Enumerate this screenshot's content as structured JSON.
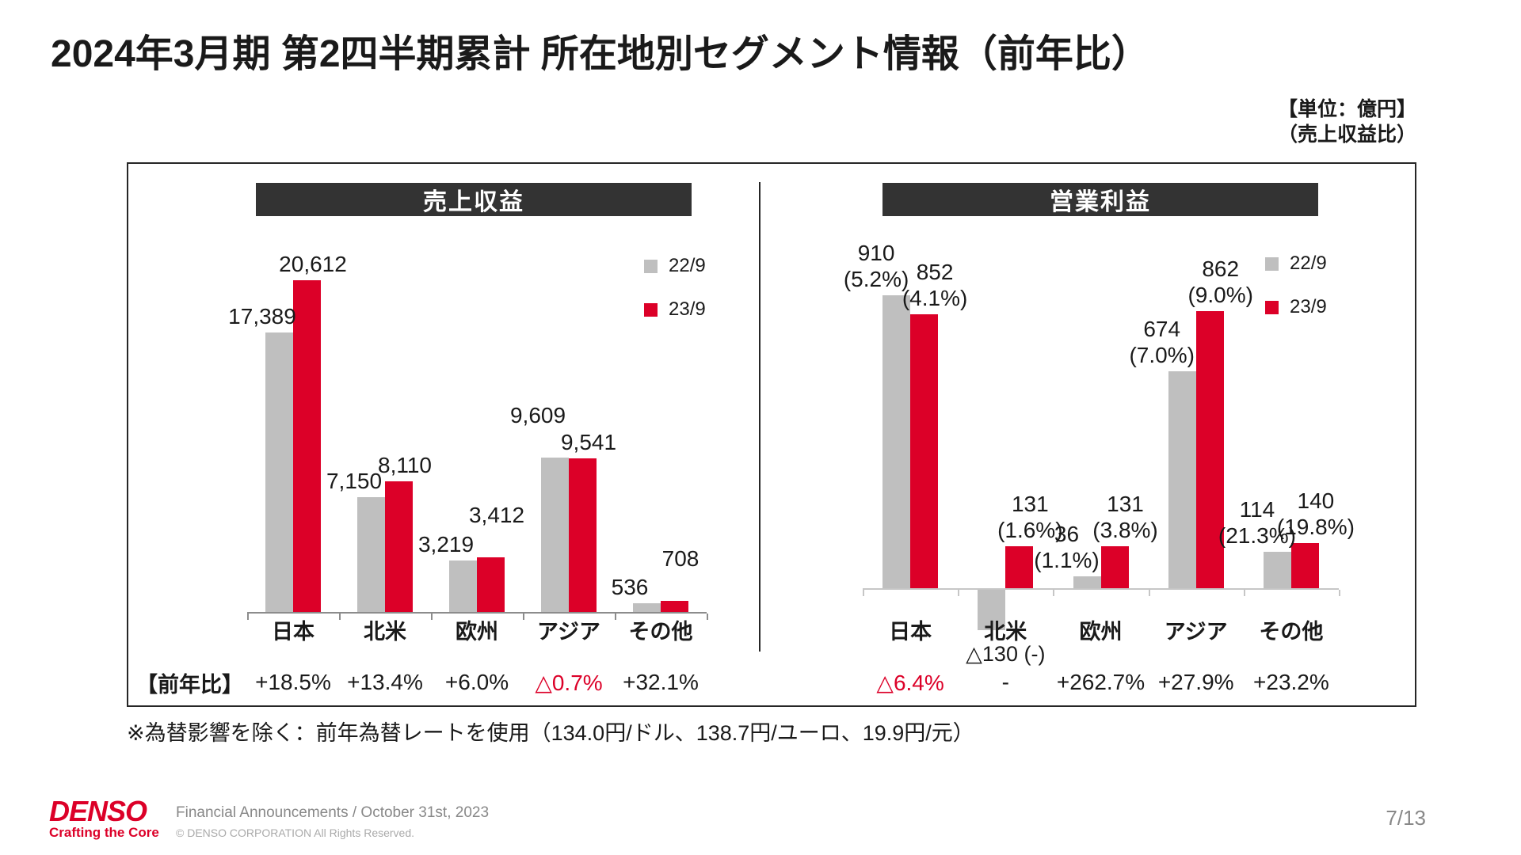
{
  "slide": {
    "title": "2024年3月期 第2四半期累計 所在地別セグメント情報（前年比）",
    "unit_lines": [
      "【単位：億円】",
      "（売上収益比）"
    ],
    "yoy_row_label": "【前年比】",
    "footnote": "※為替影響を除く：前年為替レートを使用（134.0円/ドル、138.7円/ユーロ、19.9円/元）",
    "page_number": "7/13"
  },
  "footer": {
    "logo": "DENSO",
    "tagline": "Crafting the Core",
    "event": "Financial Announcements / October 31st, 2023",
    "copyright": "© DENSO CORPORATION All Rights Reserved."
  },
  "legend": {
    "items": [
      {
        "label": "22/9",
        "color": "#BFBFBF"
      },
      {
        "label": "23/9",
        "color": "#DC0028"
      }
    ]
  },
  "colors": {
    "series_prev": "#BFBFBF",
    "series_curr": "#DC0028",
    "accent_red": "#DC0028",
    "header_bg": "#333333",
    "axis_left": "#8c8c8c",
    "axis_right": "#c6c6c6"
  },
  "chart_data": [
    {
      "type": "bar",
      "title": "売上収益",
      "categories": [
        "日本",
        "北米",
        "欧州",
        "アジア",
        "その他"
      ],
      "series": [
        {
          "name": "22/9",
          "values": [
            17389,
            7150,
            3219,
            9609,
            536
          ]
        },
        {
          "name": "23/9",
          "values": [
            20612,
            8110,
            3412,
            9541,
            708
          ]
        }
      ],
      "value_labels": [
        [
          "17,389",
          "7,150",
          "3,219",
          "9,609",
          "536"
        ],
        [
          "20,612",
          "8,110",
          "3,412",
          "9,541",
          "708"
        ]
      ],
      "yoy": [
        "+18.5%",
        "+13.4%",
        "+6.0%",
        "△0.7%",
        "+32.1%"
      ],
      "ylim": [
        0,
        22000
      ],
      "legend_position": "right-top"
    },
    {
      "type": "bar",
      "title": "営業利益",
      "categories": [
        "日本",
        "北米",
        "欧州",
        "アジア",
        "その他"
      ],
      "series": [
        {
          "name": "22/9",
          "values": [
            910,
            -130,
            36,
            674,
            114
          ]
        },
        {
          "name": "23/9",
          "values": [
            852,
            131,
            131,
            862,
            140
          ]
        }
      ],
      "value_labels": [
        [
          "910\n(5.2%)",
          "△130 (-)",
          "36\n(1.1%)",
          "674\n(7.0%)",
          "114\n(21.3%)"
        ],
        [
          "852\n(4.1%)",
          "131\n(1.6%)",
          "131\n(3.8%)",
          "862\n(9.0%)",
          "140\n(19.8%)"
        ]
      ],
      "yoy": [
        "△6.4%",
        "-",
        "+262.7%",
        "+27.9%",
        "+23.2%"
      ],
      "ylim": [
        -200,
        1000
      ],
      "legend_position": "right-top"
    }
  ]
}
